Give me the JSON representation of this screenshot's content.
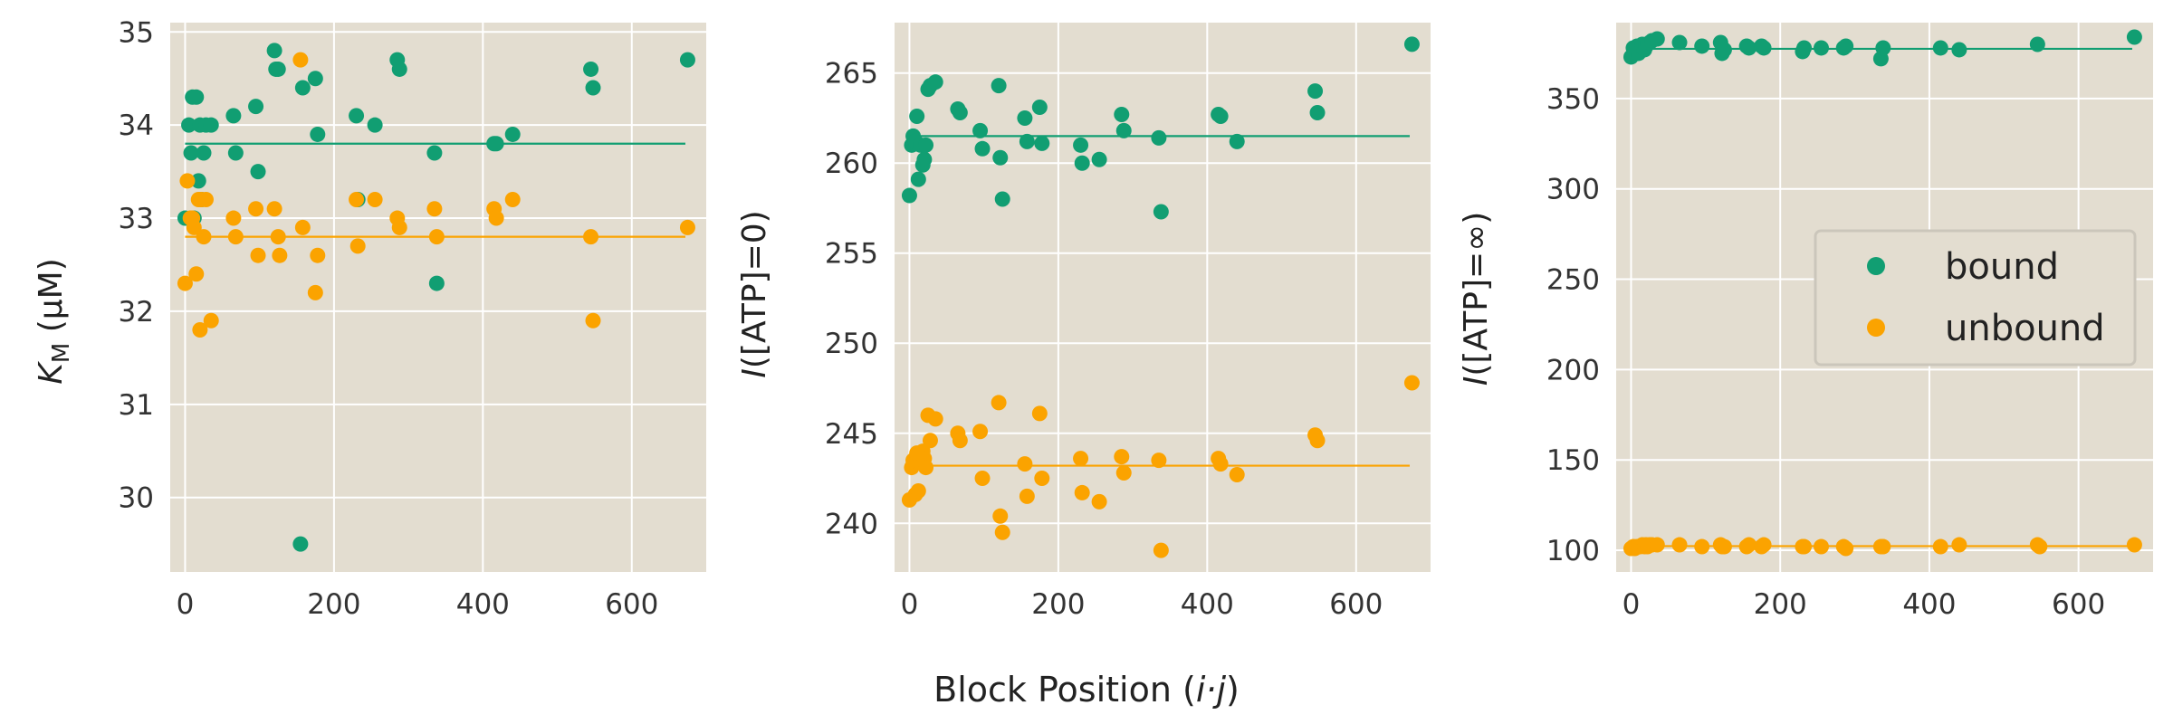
{
  "colors": {
    "bound": "#119e72",
    "unbound": "#fba300",
    "panel_bg": "#e3ddd0",
    "grid": "#ffffff"
  },
  "figure": {
    "xlabel": "Block Position (i·j)"
  },
  "legend": {
    "entries": [
      "bound",
      "unbound"
    ],
    "placement": "center-right of third panel"
  },
  "chart_data": [
    {
      "type": "scatter",
      "ylabel": "K_M (μM)",
      "xlim": [
        -20,
        700
      ],
      "ylim": [
        29.2,
        35.1
      ],
      "xticks": [
        0,
        200,
        400,
        600
      ],
      "yticks": [
        30,
        31,
        32,
        33,
        34,
        35
      ],
      "grid": true,
      "series": [
        {
          "name": "bound",
          "points": [
            [
              0,
              33.0
            ],
            [
              5,
              34.0
            ],
            [
              8,
              33.7
            ],
            [
              10,
              34.3
            ],
            [
              12,
              33.0
            ],
            [
              15,
              34.3
            ],
            [
              18,
              33.4
            ],
            [
              20,
              34.0
            ],
            [
              22,
              33.2
            ],
            [
              25,
              33.7
            ],
            [
              28,
              34.0
            ],
            [
              35,
              34.0
            ],
            [
              65,
              34.1
            ],
            [
              68,
              33.7
            ],
            [
              95,
              34.2
            ],
            [
              98,
              33.5
            ],
            [
              120,
              34.8
            ],
            [
              122,
              34.6
            ],
            [
              125,
              34.6
            ],
            [
              155,
              29.5
            ],
            [
              158,
              34.4
            ],
            [
              175,
              34.5
            ],
            [
              178,
              33.9
            ],
            [
              230,
              34.1
            ],
            [
              232,
              33.2
            ],
            [
              255,
              34.0
            ],
            [
              285,
              34.7
            ],
            [
              288,
              34.6
            ],
            [
              335,
              33.7
            ],
            [
              338,
              32.3
            ],
            [
              415,
              33.8
            ],
            [
              418,
              33.8
            ],
            [
              440,
              33.9
            ],
            [
              545,
              34.6
            ],
            [
              548,
              34.4
            ],
            [
              675,
              34.7
            ]
          ],
          "mean_line": 33.8,
          "mean_x_range": [
            0,
            672
          ]
        },
        {
          "name": "unbound",
          "points": [
            [
              0,
              32.3
            ],
            [
              3,
              33.4
            ],
            [
              7,
              33.0
            ],
            [
              10,
              33.0
            ],
            [
              12,
              32.9
            ],
            [
              15,
              32.4
            ],
            [
              18,
              33.2
            ],
            [
              20,
              31.8
            ],
            [
              22,
              33.2
            ],
            [
              25,
              32.8
            ],
            [
              28,
              33.2
            ],
            [
              35,
              31.9
            ],
            [
              65,
              33.0
            ],
            [
              68,
              32.8
            ],
            [
              95,
              33.1
            ],
            [
              98,
              32.6
            ],
            [
              120,
              33.1
            ],
            [
              125,
              32.8
            ],
            [
              127,
              32.6
            ],
            [
              155,
              34.7
            ],
            [
              158,
              32.9
            ],
            [
              175,
              32.2
            ],
            [
              178,
              32.6
            ],
            [
              230,
              33.2
            ],
            [
              232,
              32.7
            ],
            [
              255,
              33.2
            ],
            [
              285,
              33.0
            ],
            [
              288,
              32.9
            ],
            [
              335,
              33.1
            ],
            [
              338,
              32.8
            ],
            [
              415,
              33.1
            ],
            [
              418,
              33.0
            ],
            [
              440,
              33.2
            ],
            [
              545,
              32.8
            ],
            [
              548,
              31.9
            ],
            [
              675,
              32.9
            ]
          ],
          "mean_line": 32.8,
          "mean_x_range": [
            0,
            672
          ]
        }
      ]
    },
    {
      "type": "scatter",
      "ylabel": "I([ATP]=0)",
      "xlim": [
        -20,
        700
      ],
      "ylim": [
        237.3,
        267.8
      ],
      "xticks": [
        0,
        200,
        400,
        600
      ],
      "yticks": [
        240,
        245,
        250,
        255,
        260,
        265
      ],
      "grid": true,
      "series": [
        {
          "name": "bound",
          "points": [
            [
              0,
              258.2
            ],
            [
              3,
              261.0
            ],
            [
              5,
              261.5
            ],
            [
              8,
              261.2
            ],
            [
              10,
              262.6
            ],
            [
              12,
              259.1
            ],
            [
              15,
              261.0
            ],
            [
              18,
              259.9
            ],
            [
              20,
              260.2
            ],
            [
              22,
              261.0
            ],
            [
              25,
              264.1
            ],
            [
              28,
              264.3
            ],
            [
              35,
              264.5
            ],
            [
              65,
              263.0
            ],
            [
              68,
              262.8
            ],
            [
              95,
              261.8
            ],
            [
              98,
              260.8
            ],
            [
              120,
              264.3
            ],
            [
              122,
              260.3
            ],
            [
              125,
              258.0
            ],
            [
              155,
              262.5
            ],
            [
              158,
              261.2
            ],
            [
              175,
              263.1
            ],
            [
              178,
              261.1
            ],
            [
              230,
              261.0
            ],
            [
              232,
              260.0
            ],
            [
              255,
              260.2
            ],
            [
              285,
              262.7
            ],
            [
              288,
              261.8
            ],
            [
              335,
              261.4
            ],
            [
              338,
              257.3
            ],
            [
              415,
              262.7
            ],
            [
              418,
              262.6
            ],
            [
              440,
              261.2
            ],
            [
              545,
              264.0
            ],
            [
              548,
              262.8
            ],
            [
              675,
              266.6
            ]
          ],
          "mean_line": 261.5,
          "mean_x_range": [
            0,
            672
          ]
        },
        {
          "name": "unbound",
          "points": [
            [
              0,
              241.3
            ],
            [
              3,
              243.1
            ],
            [
              5,
              243.5
            ],
            [
              8,
              241.6
            ],
            [
              10,
              243.9
            ],
            [
              12,
              241.8
            ],
            [
              15,
              243.4
            ],
            [
              18,
              244.0
            ],
            [
              20,
              243.6
            ],
            [
              22,
              243.1
            ],
            [
              25,
              246.0
            ],
            [
              28,
              244.6
            ],
            [
              35,
              245.8
            ],
            [
              65,
              245.0
            ],
            [
              68,
              244.6
            ],
            [
              95,
              245.1
            ],
            [
              98,
              242.5
            ],
            [
              120,
              246.7
            ],
            [
              122,
              240.4
            ],
            [
              125,
              239.5
            ],
            [
              155,
              243.3
            ],
            [
              158,
              241.5
            ],
            [
              175,
              246.1
            ],
            [
              178,
              242.5
            ],
            [
              230,
              243.6
            ],
            [
              232,
              241.7
            ],
            [
              255,
              241.2
            ],
            [
              285,
              243.7
            ],
            [
              288,
              242.8
            ],
            [
              335,
              243.5
            ],
            [
              338,
              238.5
            ],
            [
              415,
              243.6
            ],
            [
              418,
              243.3
            ],
            [
              440,
              242.7
            ],
            [
              545,
              244.9
            ],
            [
              548,
              244.6
            ],
            [
              675,
              247.8
            ]
          ],
          "mean_line": 243.2,
          "mean_x_range": [
            0,
            672
          ]
        }
      ]
    },
    {
      "type": "scatter",
      "ylabel": "I([ATP]=∞)",
      "xlim": [
        -20,
        700
      ],
      "ylim": [
        88,
        392
      ],
      "xticks": [
        0,
        200,
        400,
        600
      ],
      "yticks": [
        100,
        150,
        200,
        250,
        300,
        350
      ],
      "grid": true,
      "series": [
        {
          "name": "bound",
          "points": [
            [
              0,
              373
            ],
            [
              3,
              378
            ],
            [
              5,
              377
            ],
            [
              8,
              379
            ],
            [
              10,
              375
            ],
            [
              12,
              379
            ],
            [
              15,
              380
            ],
            [
              18,
              377
            ],
            [
              20,
              379
            ],
            [
              22,
              380
            ],
            [
              25,
              381
            ],
            [
              28,
              382
            ],
            [
              35,
              383
            ],
            [
              65,
              381
            ],
            [
              95,
              379
            ],
            [
              120,
              381
            ],
            [
              122,
              375
            ],
            [
              125,
              377
            ],
            [
              155,
              379
            ],
            [
              158,
              378
            ],
            [
              175,
              379
            ],
            [
              178,
              378
            ],
            [
              230,
              376
            ],
            [
              232,
              378
            ],
            [
              255,
              378
            ],
            [
              285,
              378
            ],
            [
              288,
              379
            ],
            [
              335,
              372
            ],
            [
              338,
              378
            ],
            [
              415,
              378
            ],
            [
              440,
              377
            ],
            [
              545,
              380
            ],
            [
              675,
              384
            ]
          ],
          "mean_line": 377.5,
          "mean_x_range": [
            0,
            672
          ]
        },
        {
          "name": "unbound",
          "points": [
            [
              0,
              101
            ],
            [
              3,
              102
            ],
            [
              5,
              101
            ],
            [
              8,
              102
            ],
            [
              10,
              102
            ],
            [
              12,
              102
            ],
            [
              15,
              103
            ],
            [
              18,
              102
            ],
            [
              20,
              103
            ],
            [
              22,
              102
            ],
            [
              25,
              103
            ],
            [
              28,
              103
            ],
            [
              35,
              103
            ],
            [
              65,
              103
            ],
            [
              95,
              102
            ],
            [
              120,
              103
            ],
            [
              122,
              102
            ],
            [
              125,
              102
            ],
            [
              155,
              102
            ],
            [
              158,
              103
            ],
            [
              175,
              102
            ],
            [
              178,
              103
            ],
            [
              230,
              102
            ],
            [
              232,
              102
            ],
            [
              255,
              102
            ],
            [
              285,
              102
            ],
            [
              288,
              101
            ],
            [
              335,
              102
            ],
            [
              338,
              102
            ],
            [
              415,
              102
            ],
            [
              440,
              103
            ],
            [
              545,
              103
            ],
            [
              548,
              102
            ],
            [
              675,
              103
            ]
          ],
          "mean_line": 102.3,
          "mean_x_range": [
            0,
            672
          ]
        }
      ]
    }
  ]
}
